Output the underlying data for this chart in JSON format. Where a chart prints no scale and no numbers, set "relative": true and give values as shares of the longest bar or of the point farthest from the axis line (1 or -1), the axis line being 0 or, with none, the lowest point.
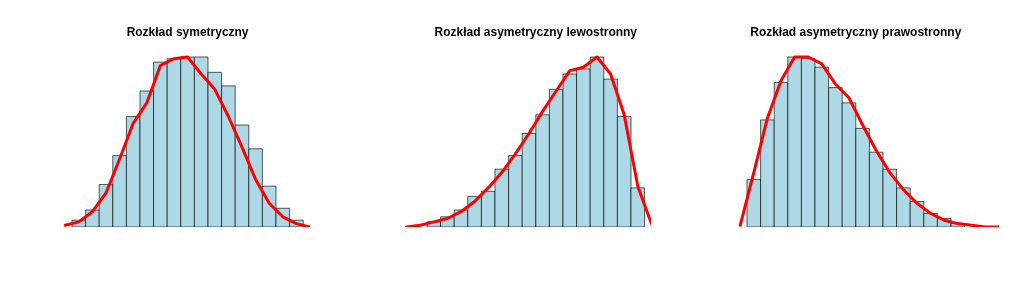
{
  "chart_data": [
    {
      "type": "bar",
      "title": "Rozkład symetryczny",
      "relative": true,
      "categories": [
        null,
        null,
        null,
        null,
        null,
        null,
        null,
        null,
        null,
        null,
        null,
        null,
        null,
        null,
        null,
        null,
        null
      ],
      "series": [
        {
          "color": "#add8e6",
          "values": [
            0.04,
            0.1,
            0.25,
            0.42,
            0.65,
            0.8,
            0.97,
            0.99,
            1,
            1,
            0.91,
            0.83,
            0.6,
            0.46,
            0.24,
            0.11,
            0.04
          ]
        }
      ]
    },
    {
      "type": "line",
      "relative": true,
      "categories": [
        null,
        null,
        null,
        null,
        null,
        null,
        null,
        null,
        null,
        null,
        null,
        null,
        null,
        null,
        null,
        null,
        null,
        null,
        null
      ],
      "series": [
        {
          "color": "#ff0000",
          "values": [
            0.01,
            0.03,
            0.09,
            0.2,
            0.4,
            0.61,
            0.73,
            0.95,
            0.99,
            1,
            0.9,
            0.81,
            0.65,
            0.47,
            0.28,
            0.14,
            0.06,
            0.02,
            0
          ]
        }
      ]
    },
    {
      "type": "bar",
      "title": "Rozkład asymetryczny lewostronny",
      "relative": true,
      "categories": [
        null,
        null,
        null,
        null,
        null,
        null,
        null,
        null,
        null,
        null,
        null,
        null,
        null,
        null,
        null,
        null
      ],
      "series": [
        {
          "color": "#add8e6",
          "values": [
            0.03,
            0.06,
            0.1,
            0.18,
            0.21,
            0.34,
            0.42,
            0.55,
            0.66,
            0.81,
            0.9,
            0.93,
            1,
            0.87,
            0.65,
            0.23
          ]
        }
      ]
    },
    {
      "type": "line",
      "relative": true,
      "categories": [
        null,
        null,
        null,
        null,
        null,
        null,
        null,
        null,
        null,
        null,
        null,
        null,
        null,
        null,
        null,
        null,
        null,
        null,
        null
      ],
      "series": [
        {
          "color": "#ff0000",
          "values": [
            0,
            0.01,
            0.03,
            0.05,
            0.09,
            0.15,
            0.23,
            0.32,
            0.43,
            0.55,
            0.68,
            0.8,
            0.92,
            0.94,
            1,
            0.9,
            0.66,
            0.24,
            0.02
          ]
        }
      ]
    },
    {
      "type": "bar",
      "title": "Rozkład asymetryczny prawostronny",
      "relative": true,
      "categories": [
        null,
        null,
        null,
        null,
        null,
        null,
        null,
        null,
        null,
        null,
        null,
        null,
        null,
        null,
        null,
        null
      ],
      "series": [
        {
          "color": "#add8e6",
          "values": [
            0.28,
            0.63,
            0.85,
            1,
            0.99,
            0.94,
            0.82,
            0.73,
            0.58,
            0.44,
            0.34,
            0.23,
            0.15,
            0.08,
            0.05,
            0.02
          ]
        }
      ]
    },
    {
      "type": "line",
      "relative": true,
      "categories": [
        null,
        null,
        null,
        null,
        null,
        null,
        null,
        null,
        null,
        null,
        null,
        null,
        null,
        null,
        null,
        null,
        null,
        null,
        null,
        null
      ],
      "series": [
        {
          "color": "#ff0000",
          "values": [
            0.01,
            0.32,
            0.64,
            0.86,
            1,
            1,
            0.96,
            0.84,
            0.76,
            0.6,
            0.45,
            0.32,
            0.22,
            0.14,
            0.08,
            0.04,
            0.02,
            0.01,
            0,
            0
          ]
        }
      ]
    }
  ]
}
